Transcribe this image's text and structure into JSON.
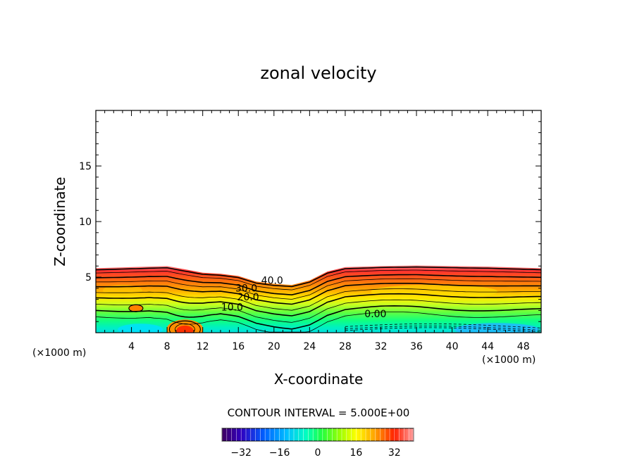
{
  "chart_data": {
    "type": "heatmap",
    "title": "zonal velocity",
    "xlabel": "X-coordinate",
    "ylabel": "Z-coordinate",
    "x_unit_left": "(×1000 m)",
    "x_unit_right": "(×1000 m)",
    "xlim": [
      0,
      50
    ],
    "ylim": [
      0,
      20
    ],
    "x_ticks": [
      4,
      8,
      12,
      16,
      20,
      24,
      28,
      32,
      36,
      40,
      44,
      48
    ],
    "y_ticks": [
      5,
      10,
      15
    ],
    "contour_interval_text": "CONTOUR INTERVAL = 5.000E+00",
    "contour_labels": [
      {
        "text": "40.0",
        "x": 19.8,
        "z": 4.4
      },
      {
        "text": "30.0",
        "x": 16.9,
        "z": 3.7
      },
      {
        "text": "20.0",
        "x": 17.1,
        "z": 2.9
      },
      {
        "text": "10.0",
        "x": 15.3,
        "z": 2.0
      },
      {
        "text": "0.00",
        "x": 31.4,
        "z": 1.4
      }
    ],
    "colorbar": {
      "min": -40,
      "max": 40,
      "ticks": [
        -32,
        -16,
        0,
        16,
        32
      ]
    },
    "colors": {
      "top_jet": "#ff5050",
      "mid": "#ffe000",
      "low": "#40ff60",
      "negative": "#30c8ff"
    }
  }
}
